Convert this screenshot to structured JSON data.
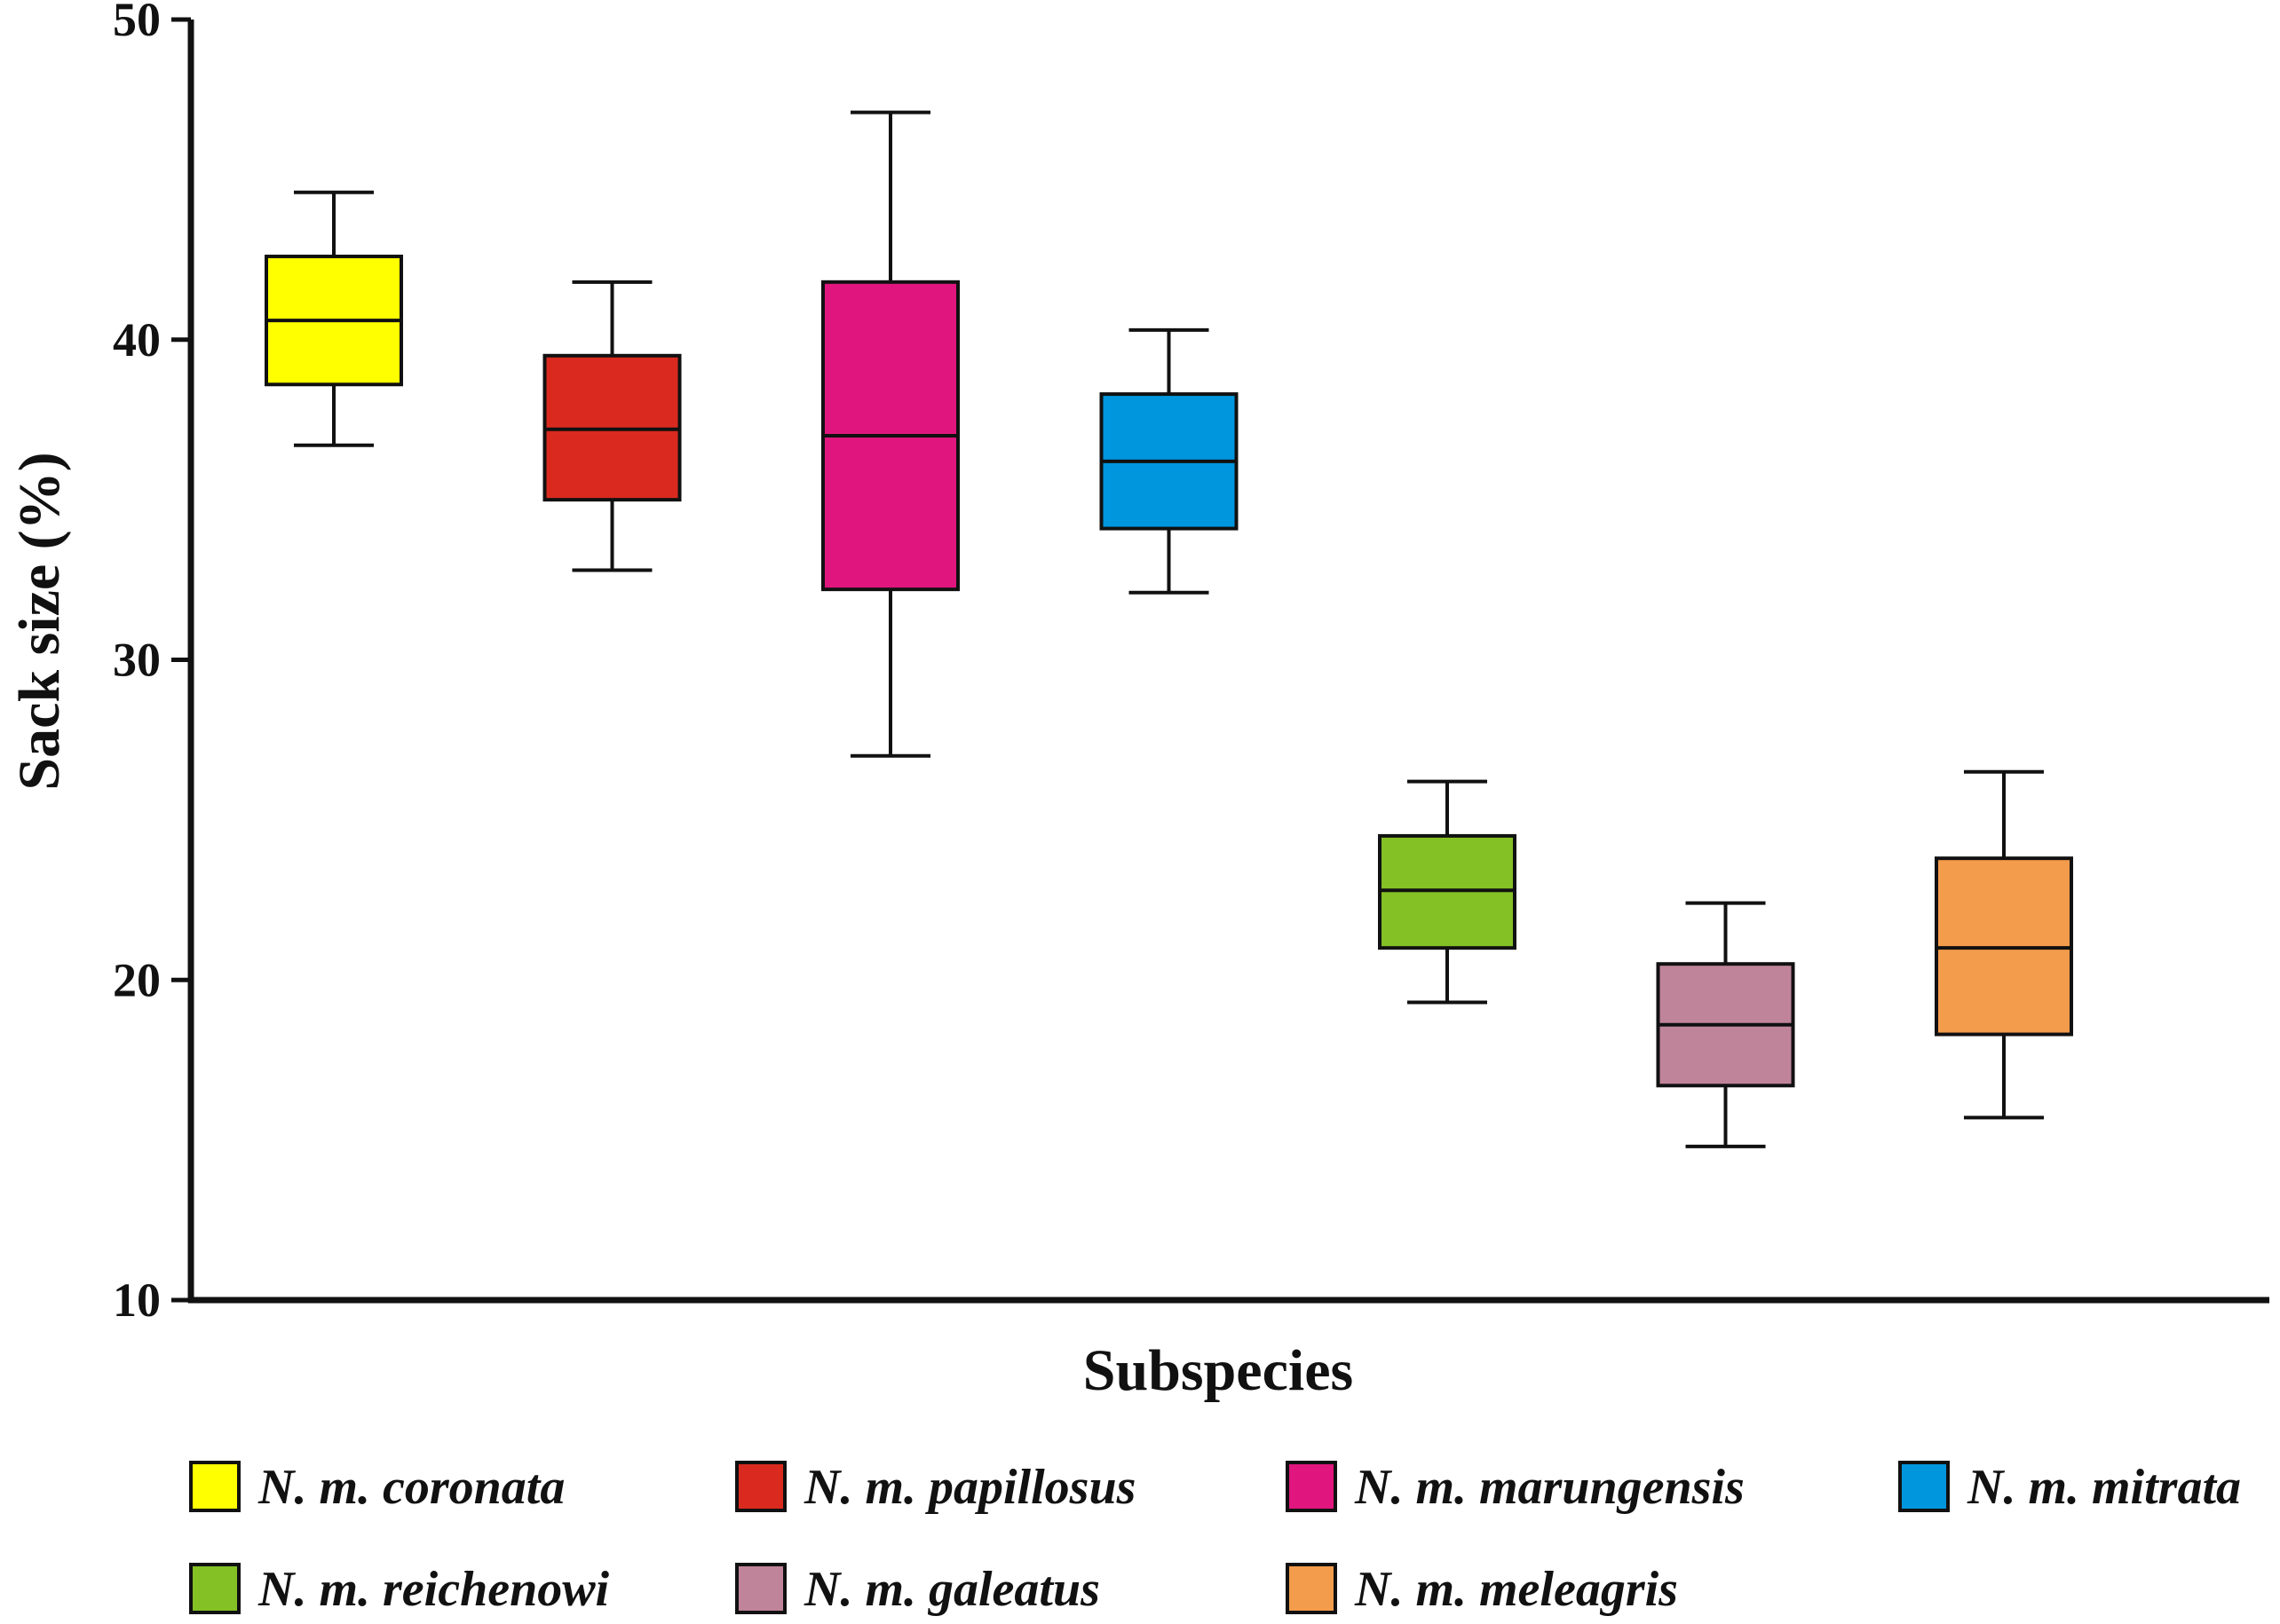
{
  "chart_data": {
    "type": "box",
    "title": "",
    "xlabel": "Subspecies",
    "ylabel": "Sack size (%)",
    "ylim": [
      10,
      50
    ],
    "yticks": [
      10,
      20,
      30,
      40,
      50
    ],
    "grid": false,
    "legend_position": "bottom",
    "series": [
      {
        "name": "N. m. coronata",
        "color": "#FFFF00",
        "min": 36.7,
        "q1": 38.6,
        "median": 40.6,
        "q3": 42.6,
        "max": 44.6
      },
      {
        "name": "N. m. papillosus",
        "color": "#DA2A1F",
        "min": 32.8,
        "q1": 35.0,
        "median": 37.2,
        "q3": 39.5,
        "max": 41.8
      },
      {
        "name": "N. m. marungensis",
        "color": "#E0167E",
        "min": 27.0,
        "q1": 32.2,
        "median": 37.0,
        "q3": 41.8,
        "max": 47.1
      },
      {
        "name": "N. m. mitrata",
        "color": "#0096DE",
        "min": 32.1,
        "q1": 34.1,
        "median": 36.2,
        "q3": 38.3,
        "max": 40.3
      },
      {
        "name": "N. m. reichenowi",
        "color": "#83C125",
        "min": 19.3,
        "q1": 21.0,
        "median": 22.8,
        "q3": 24.5,
        "max": 26.2
      },
      {
        "name": "N. m. galeatus",
        "color": "#C0849A",
        "min": 14.8,
        "q1": 16.7,
        "median": 18.6,
        "q3": 20.5,
        "max": 22.4
      },
      {
        "name": "N. m. meleagris",
        "color": "#F39C4B",
        "min": 15.7,
        "q1": 18.3,
        "median": 21.0,
        "q3": 23.8,
        "max": 26.5
      }
    ]
  }
}
